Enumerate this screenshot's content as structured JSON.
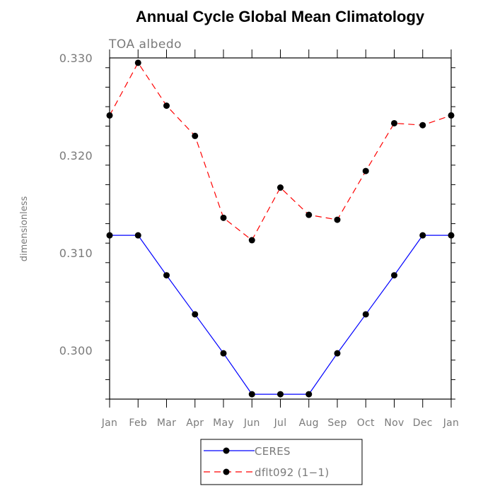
{
  "chart_data": {
    "type": "line",
    "title": "Annual Cycle Global Mean Climatology",
    "subtitle": "TOA albedo",
    "xlabel": "",
    "ylabel": "dimensionless",
    "categories": [
      "Jan",
      "Feb",
      "Mar",
      "Apr",
      "May",
      "Jun",
      "Jul",
      "Aug",
      "Sep",
      "Oct",
      "Nov",
      "Dec",
      "Jan"
    ],
    "ylim": [
      0.295,
      0.33
    ],
    "yticks": [
      0.3,
      0.31,
      0.32,
      0.33
    ],
    "ytick_labels": [
      "0.300",
      "0.310",
      "0.320",
      "0.330"
    ],
    "legend_position": "bottom",
    "series": [
      {
        "name": "CERES",
        "color": "#0000ff",
        "dash": "solid",
        "marker": "filled-circle",
        "values": [
          0.3118,
          0.3118,
          0.3077,
          0.3037,
          0.2997,
          0.2955,
          0.2955,
          0.2955,
          0.2997,
          0.3037,
          0.3077,
          0.3118,
          0.3118
        ]
      },
      {
        "name": "dflt092 (1−1)",
        "color": "#ff0000",
        "dash": "dashed",
        "marker": "filled-circle",
        "values": [
          0.3241,
          0.3295,
          0.3251,
          0.322,
          0.3136,
          0.3113,
          0.3167,
          0.3139,
          0.3134,
          0.3184,
          0.3233,
          0.3231,
          0.3241
        ]
      }
    ]
  }
}
